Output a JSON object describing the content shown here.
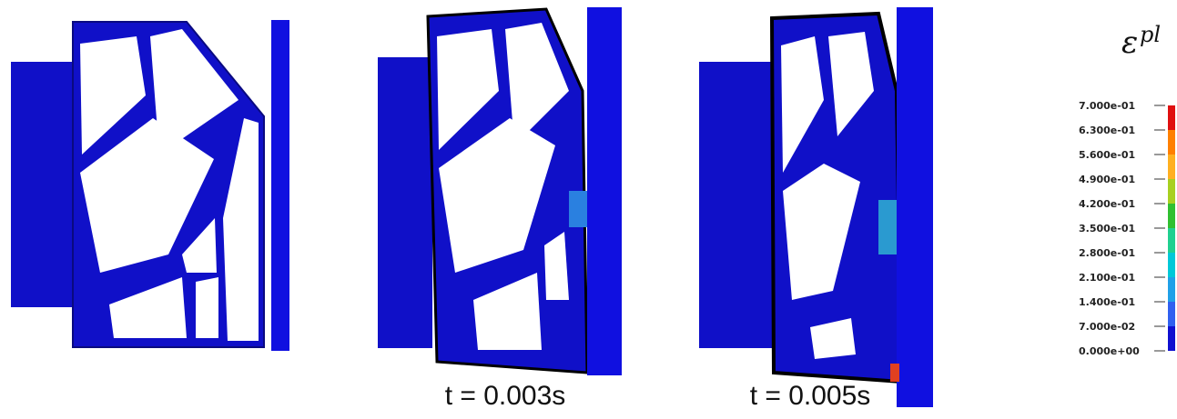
{
  "captions": [
    "t = 0.003s",
    "t = 0.005s"
  ],
  "legend": {
    "symbol": "ε",
    "superscript": "pl",
    "labels": [
      "7.000e-01",
      "6.300e-01",
      "5.600e-01",
      "4.900e-01",
      "4.200e-01",
      "3.500e-01",
      "2.800e-01",
      "2.100e-01",
      "1.400e-01",
      "7.000e-02",
      "0.000e+00"
    ]
  }
}
